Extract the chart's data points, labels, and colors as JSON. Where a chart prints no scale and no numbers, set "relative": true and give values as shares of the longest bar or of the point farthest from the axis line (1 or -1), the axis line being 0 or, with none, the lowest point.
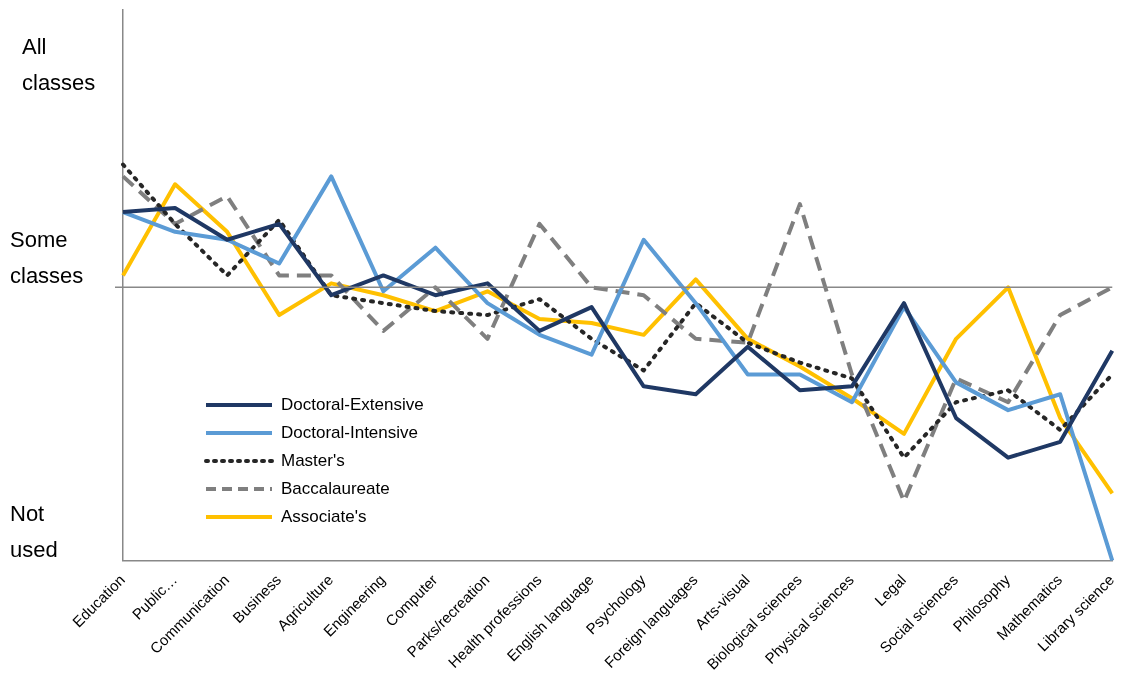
{
  "chart_data": {
    "type": "line",
    "categories": [
      "Education",
      "Public…",
      "Communication",
      "Business",
      "Agriculture",
      "Engineering",
      "Computer",
      "Parks/recreation",
      "Health professions",
      "English language",
      "Psychology",
      "Foreign languages",
      "Arts-visual",
      "Biological sciences",
      "Physical sciences",
      "Legal",
      "Social sciences",
      "Philosophy",
      "Mathematics",
      "Library science"
    ],
    "relative": true,
    "annotations": [
      "All classes",
      "Not used"
    ],
    "ref_lines": [
      {
        "axis": "y",
        "value": 0.69,
        "label": "Some classes"
      }
    ],
    "legend": "bottom left",
    "marker": "none",
    "series": [
      {
        "name": "Doctoral-Extensive",
        "color": "#1f3864",
        "line_style": "solid",
        "values": [
          0.88,
          0.89,
          0.81,
          0.85,
          0.67,
          0.72,
          0.67,
          0.7,
          0.58,
          0.64,
          0.44,
          0.42,
          0.54,
          0.43,
          0.44,
          0.65,
          0.36,
          0.26,
          0.3,
          0.53
        ]
      },
      {
        "name": "Doctoral-Intensive",
        "color": "#5b9bd5",
        "line_style": "solid",
        "values": [
          0.88,
          0.83,
          0.81,
          0.75,
          0.97,
          0.68,
          0.79,
          0.65,
          0.57,
          0.52,
          0.81,
          0.65,
          0.47,
          0.47,
          0.4,
          0.64,
          0.45,
          0.38,
          0.42,
          0
        ]
      },
      {
        "name": "Master's",
        "color": "#262626",
        "line_style": "dotted",
        "values": [
          1,
          0.85,
          0.72,
          0.86,
          0.67,
          0.65,
          0.63,
          0.62,
          0.66,
          0.56,
          0.48,
          0.65,
          0.55,
          0.5,
          0.46,
          0.26,
          0.4,
          0.43,
          0.33,
          0.47
        ]
      },
      {
        "name": "Baccalaureate",
        "color": "#7f7f7f",
        "line_style": "dashed",
        "values": [
          0.97,
          0.85,
          0.92,
          0.72,
          0.72,
          0.58,
          0.69,
          0.56,
          0.85,
          0.69,
          0.67,
          0.56,
          0.55,
          0.9,
          0.47,
          0.15,
          0.46,
          0.4,
          0.62,
          0.69
        ]
      },
      {
        "name": "Associate's",
        "color": "#ffc000",
        "line_style": "solid",
        "values": [
          0.72,
          0.95,
          0.83,
          0.62,
          0.7,
          0.67,
          0.63,
          0.68,
          0.61,
          0.6,
          0.57,
          0.71,
          0.56,
          0.49,
          0.41,
          0.32,
          0.56,
          0.69,
          0.36,
          0.17
        ]
      }
    ]
  }
}
